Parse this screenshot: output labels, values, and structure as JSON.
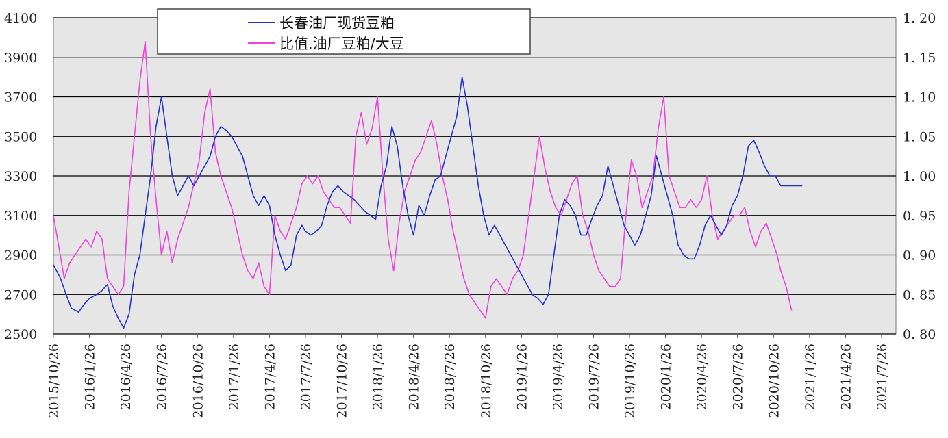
{
  "chart_data": {
    "type": "line",
    "title": "",
    "legend_position": "top-center",
    "grid": true,
    "y_left": {
      "ticks": [
        "4100",
        "3900",
        "3700",
        "3500",
        "3300",
        "3100",
        "2900",
        "2700",
        "2500"
      ],
      "ylim": [
        2500,
        4100
      ]
    },
    "y_right": {
      "ticks": [
        "1. 20",
        "1. 15",
        "1. 10",
        "1. 05",
        "1. 00",
        "0. 95",
        "0. 90",
        "0. 85",
        "0. 80"
      ],
      "ylim": [
        0.8,
        1.2
      ]
    },
    "x_ticks": [
      "2015/10/26",
      "2016/1/26",
      "2016/4/26",
      "2016/7/26",
      "2016/10/26",
      "2017/1/26",
      "2017/4/26",
      "2017/7/26",
      "2017/10/26",
      "2018/1/26",
      "2018/4/26",
      "2018/7/26",
      "2018/10/26",
      "2019/1/26",
      "2019/4/26",
      "2019/7/26",
      "2019/10/26",
      "2020/1/26",
      "2020/4/26",
      "2020/7/26",
      "2020/10/26",
      "2021/1/26",
      "2021/4/26",
      "2021/7/26"
    ],
    "series": [
      {
        "name": "长春油厂现货豆粕",
        "axis": "left",
        "color": "#2233cc",
        "x": [
          0,
          0.2,
          0.35,
          0.5,
          0.7,
          0.85,
          1.0,
          1.2,
          1.35,
          1.5,
          1.65,
          1.8,
          1.95,
          2.1,
          2.25,
          2.4,
          2.55,
          2.7,
          2.85,
          3.0,
          3.15,
          3.3,
          3.45,
          3.6,
          3.75,
          3.9,
          4.05,
          4.2,
          4.35,
          4.5,
          4.65,
          4.8,
          4.95,
          5.1,
          5.25,
          5.4,
          5.55,
          5.7,
          5.85,
          6.0,
          6.15,
          6.3,
          6.45,
          6.6,
          6.75,
          6.9,
          7.0,
          7.15,
          7.3,
          7.45,
          7.6,
          7.75,
          7.9,
          8.05,
          8.2,
          8.35,
          8.5,
          8.65,
          8.8,
          8.95,
          9.1,
          9.25,
          9.4,
          9.55,
          9.7,
          9.85,
          10.0,
          10.15,
          10.3,
          10.45,
          10.6,
          10.75,
          10.9,
          11.05,
          11.2,
          11.35,
          11.5,
          11.65,
          11.8,
          11.95,
          12.1,
          12.25,
          12.4,
          12.55,
          12.7,
          12.85,
          13.0,
          13.15,
          13.3,
          13.45,
          13.6,
          13.75,
          13.9,
          14.05,
          14.2,
          14.35,
          14.5,
          14.65,
          14.8,
          14.95,
          15.1,
          15.25,
          15.4,
          15.55,
          15.7,
          15.85,
          16.0,
          16.15,
          16.3,
          16.45,
          16.6,
          16.75,
          16.9,
          17.05,
          17.2,
          17.35,
          17.5,
          17.65,
          17.8,
          17.95,
          18.1,
          18.25,
          18.4,
          18.55,
          18.7,
          18.85,
          19.0,
          19.15,
          19.3,
          19.45,
          19.6,
          19.75,
          19.9,
          20.05,
          20.2,
          20.35,
          20.5,
          20.65,
          20.8
        ],
        "values": [
          2850,
          2780,
          2700,
          2630,
          2610,
          2650,
          2680,
          2700,
          2720,
          2750,
          2640,
          2580,
          2530,
          2600,
          2800,
          2900,
          3100,
          3300,
          3550,
          3700,
          3500,
          3300,
          3200,
          3250,
          3300,
          3250,
          3300,
          3350,
          3400,
          3500,
          3550,
          3530,
          3500,
          3450,
          3400,
          3300,
          3200,
          3150,
          3200,
          3150,
          3000,
          2900,
          2820,
          2850,
          3000,
          3050,
          3020,
          3000,
          3020,
          3050,
          3150,
          3220,
          3250,
          3220,
          3200,
          3180,
          3150,
          3120,
          3100,
          3080,
          3250,
          3350,
          3550,
          3450,
          3250,
          3100,
          3000,
          3150,
          3100,
          3200,
          3280,
          3300,
          3400,
          3500,
          3600,
          3800,
          3650,
          3450,
          3250,
          3100,
          3000,
          3050,
          3000,
          2950,
          2900,
          2850,
          2800,
          2750,
          2700,
          2680,
          2650,
          2700,
          2900,
          3100,
          3180,
          3150,
          3100,
          3000,
          3000,
          3080,
          3150,
          3200,
          3350,
          3250,
          3150,
          3050,
          3000,
          2950,
          3000,
          3100,
          3200,
          3400,
          3300,
          3200,
          3100,
          2950,
          2900,
          2880,
          2880,
          2950,
          3050,
          3100,
          3050,
          3000,
          3050,
          3150,
          3200,
          3300,
          3450,
          3480,
          3420,
          3350,
          3300,
          3300,
          3250,
          3250,
          3250,
          3250,
          3250
        ]
      },
      {
        "name": "比值.油厂豆粕/大豆",
        "axis": "right",
        "color": "#ee44dd",
        "x": [
          0,
          0.15,
          0.3,
          0.45,
          0.6,
          0.75,
          0.9,
          1.05,
          1.2,
          1.35,
          1.5,
          1.65,
          1.8,
          1.95,
          2.1,
          2.25,
          2.4,
          2.55,
          2.7,
          2.85,
          3.0,
          3.15,
          3.3,
          3.45,
          3.6,
          3.75,
          3.9,
          4.05,
          4.2,
          4.35,
          4.5,
          4.65,
          4.8,
          4.95,
          5.1,
          5.25,
          5.4,
          5.55,
          5.7,
          5.85,
          6.0,
          6.15,
          6.3,
          6.45,
          6.6,
          6.75,
          6.9,
          7.05,
          7.2,
          7.35,
          7.5,
          7.65,
          7.8,
          7.95,
          8.1,
          8.25,
          8.4,
          8.55,
          8.7,
          8.85,
          9.0,
          9.15,
          9.3,
          9.45,
          9.6,
          9.75,
          9.9,
          10.05,
          10.2,
          10.35,
          10.5,
          10.65,
          10.8,
          10.95,
          11.1,
          11.25,
          11.4,
          11.55,
          11.7,
          11.85,
          12.0,
          12.15,
          12.3,
          12.45,
          12.6,
          12.75,
          12.9,
          13.05,
          13.2,
          13.35,
          13.5,
          13.65,
          13.8,
          13.95,
          14.1,
          14.25,
          14.4,
          14.55,
          14.7,
          14.85,
          15.0,
          15.15,
          15.3,
          15.45,
          15.6,
          15.75,
          15.9,
          16.05,
          16.2,
          16.35,
          16.5,
          16.65,
          16.8,
          16.95,
          17.1,
          17.25,
          17.4,
          17.55,
          17.7,
          17.85,
          18.0,
          18.15,
          18.3,
          18.45,
          18.6,
          18.75,
          18.9,
          19.05,
          19.2,
          19.35,
          19.5,
          19.65,
          19.8,
          19.95,
          20.1,
          20.2,
          20.35,
          20.5
        ],
        "values": [
          0.95,
          0.91,
          0.87,
          0.89,
          0.9,
          0.91,
          0.92,
          0.91,
          0.93,
          0.92,
          0.87,
          0.86,
          0.85,
          0.86,
          0.98,
          1.05,
          1.12,
          1.17,
          1.05,
          0.97,
          0.9,
          0.93,
          0.89,
          0.92,
          0.94,
          0.96,
          0.99,
          1.02,
          1.08,
          1.11,
          1.03,
          1.0,
          0.98,
          0.96,
          0.93,
          0.9,
          0.88,
          0.87,
          0.89,
          0.86,
          0.85,
          0.95,
          0.93,
          0.92,
          0.94,
          0.96,
          0.99,
          1.0,
          0.99,
          1.0,
          0.98,
          0.97,
          0.96,
          0.96,
          0.95,
          0.94,
          1.05,
          1.08,
          1.04,
          1.06,
          1.1,
          1.0,
          0.92,
          0.88,
          0.94,
          0.98,
          1.0,
          1.02,
          1.03,
          1.05,
          1.07,
          1.04,
          1.0,
          0.97,
          0.93,
          0.9,
          0.87,
          0.85,
          0.84,
          0.83,
          0.82,
          0.86,
          0.87,
          0.86,
          0.85,
          0.87,
          0.88,
          0.9,
          0.95,
          1.0,
          1.05,
          1.01,
          0.98,
          0.96,
          0.95,
          0.97,
          0.99,
          1.0,
          0.95,
          0.93,
          0.9,
          0.88,
          0.87,
          0.86,
          0.86,
          0.87,
          0.95,
          1.02,
          1.0,
          0.96,
          0.98,
          1.0,
          1.06,
          1.1,
          1.0,
          0.98,
          0.96,
          0.96,
          0.97,
          0.96,
          0.97,
          1.0,
          0.95,
          0.92,
          0.93,
          0.94,
          0.95,
          0.95,
          0.96,
          0.93,
          0.91,
          0.93,
          0.94,
          0.92,
          0.9,
          0.88,
          0.86,
          0.83
        ]
      }
    ]
  }
}
